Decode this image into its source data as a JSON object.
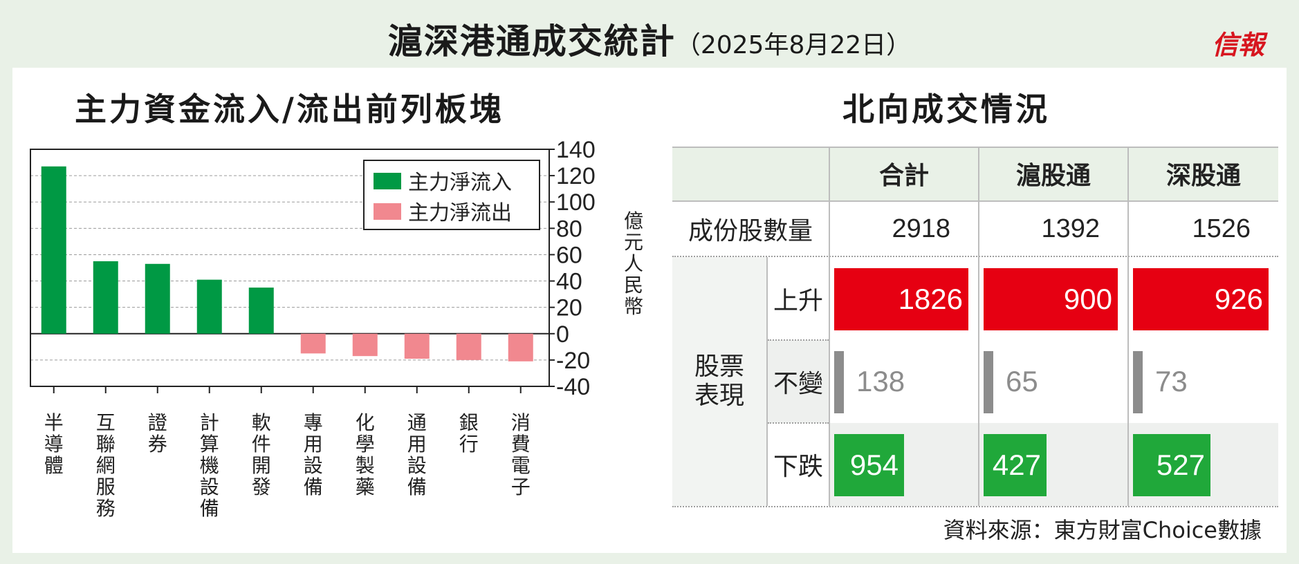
{
  "header": {
    "title": "滬深港通成交統計",
    "date": "（2025年8月22日）",
    "logo": "信報"
  },
  "left": {
    "title": "主力資金流入/流出前列板塊",
    "unit": "億元人民幣"
  },
  "right": {
    "title": "北向成交情況"
  },
  "chart_data": {
    "type": "bar",
    "categories": [
      "半導體",
      "互聯網服務",
      "證券",
      "計算機設備",
      "軟件開發",
      "專用設備",
      "化學製藥",
      "通用設備",
      "銀行",
      "消費電子"
    ],
    "values": [
      127,
      55,
      53,
      41,
      35,
      -15,
      -17,
      -19,
      -20,
      -21
    ],
    "series": [
      {
        "name": "主力淨流入",
        "color": "#009944"
      },
      {
        "name": "主力淨流出",
        "color": "#f1888f"
      }
    ],
    "ylim": [
      -40,
      140
    ],
    "yticks": [
      140,
      120,
      100,
      80,
      60,
      40,
      20,
      0,
      -20,
      -40
    ],
    "ylabel": "億元人民幣",
    "grid": "dashed horizontal",
    "legend": "top-right"
  },
  "table": {
    "columns": [
      "合計",
      "滬股通",
      "深股通"
    ],
    "row_constituents": {
      "label": "成份股數量",
      "values": [
        "2918",
        "1392",
        "1526"
      ]
    },
    "group_label_line1": "股票",
    "group_label_line2": "表現",
    "rows": [
      {
        "label": "上升",
        "values": [
          "1826",
          "900",
          "926"
        ],
        "fractions": [
          1.0,
          1.0,
          1.0
        ],
        "color": "#e60012"
      },
      {
        "label": "不變",
        "values": [
          "138",
          "65",
          "73"
        ],
        "color": "#8c8c8c"
      },
      {
        "label": "下跌",
        "values": [
          "954",
          "427",
          "527"
        ],
        "fractions": [
          0.52,
          0.47,
          0.57
        ],
        "color": "#20a83a"
      }
    ]
  },
  "source": "資料來源：東方財富Choice數據"
}
